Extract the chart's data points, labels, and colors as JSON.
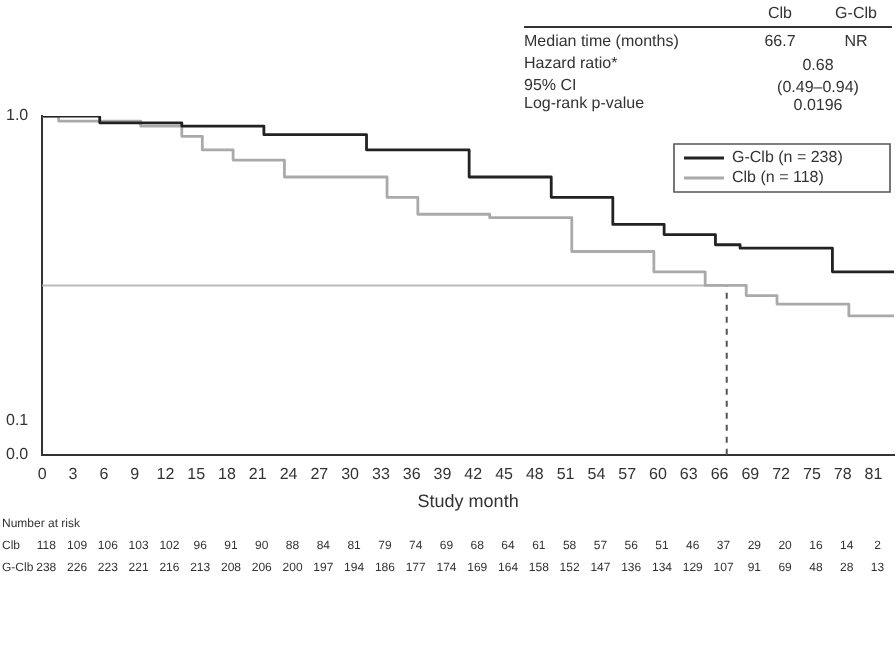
{
  "chart_data": {
    "type": "step",
    "xlabel": "Study month",
    "xlim": [
      0,
      83
    ],
    "xticks": [
      0,
      3,
      6,
      9,
      12,
      15,
      18,
      21,
      24,
      27,
      30,
      33,
      36,
      39,
      42,
      45,
      48,
      51,
      54,
      57,
      60,
      63,
      66,
      69,
      72,
      75,
      78,
      81
    ],
    "ylim": [
      0,
      1
    ],
    "yticks": [
      {
        "value": 0,
        "label": "0.0"
      },
      {
        "value": 0.1,
        "label": "0.1"
      },
      {
        "value": 1,
        "label": "1.0"
      }
    ],
    "grid": false,
    "legend": "top right",
    "marker": "none",
    "series": [
      {
        "name": "G-Clb (n = 238)",
        "color": "#222222",
        "x": [
          0,
          5.6,
          13.6,
          21.6,
          31.6,
          41.6,
          49.6,
          55.6,
          60.6,
          65.6,
          68,
          77,
          83
        ],
        "values": [
          1,
          0.98,
          0.97,
          0.945,
          0.9,
          0.82,
          0.76,
          0.68,
          0.65,
          0.62,
          0.61,
          0.54,
          0.54
        ]
      },
      {
        "name": "Clb (n = 118)",
        "color": "#aaaaaa",
        "x": [
          0,
          1.6,
          9.6,
          13.6,
          15.6,
          18.6,
          23.6,
          33.6,
          36.6,
          43.6,
          51.6,
          59.6,
          64.6,
          68.6,
          71.6,
          76.6,
          78.6,
          83
        ],
        "values": [
          1,
          0.985,
          0.97,
          0.94,
          0.9,
          0.87,
          0.82,
          0.76,
          0.71,
          0.7,
          0.6,
          0.54,
          0.5,
          0.47,
          0.445,
          0.445,
          0.41,
          0.41
        ]
      }
    ],
    "ref_lines": [
      {
        "axis": "y",
        "value": 0.5,
        "color": "#bbbbbb",
        "line_style": "solid"
      },
      {
        "axis": "x",
        "value": 66.7,
        "color": "#555555",
        "line_style": "dashed"
      }
    ],
    "annotations": [
      "Clb",
      "G-Clb",
      "Median time (months)",
      "66.7",
      "NR",
      "Hazard ratio*",
      "0.68",
      "95% CI",
      "(0.49–0.94)",
      "Log-rank p-value",
      "0.0196",
      "Number at risk",
      "Clb",
      "118 109 106 103 102 96 91 90 88 84 81 79 74 69 68 64 61 58 57 56 51 46 37 29 20 16 14 2",
      "G-Clb",
      "238 226 223 221 216 213 208 206 200 197 194 186 177 174 169 164 158 152 147 136 134 129 107 91 69 48 28 13"
    ]
  }
}
